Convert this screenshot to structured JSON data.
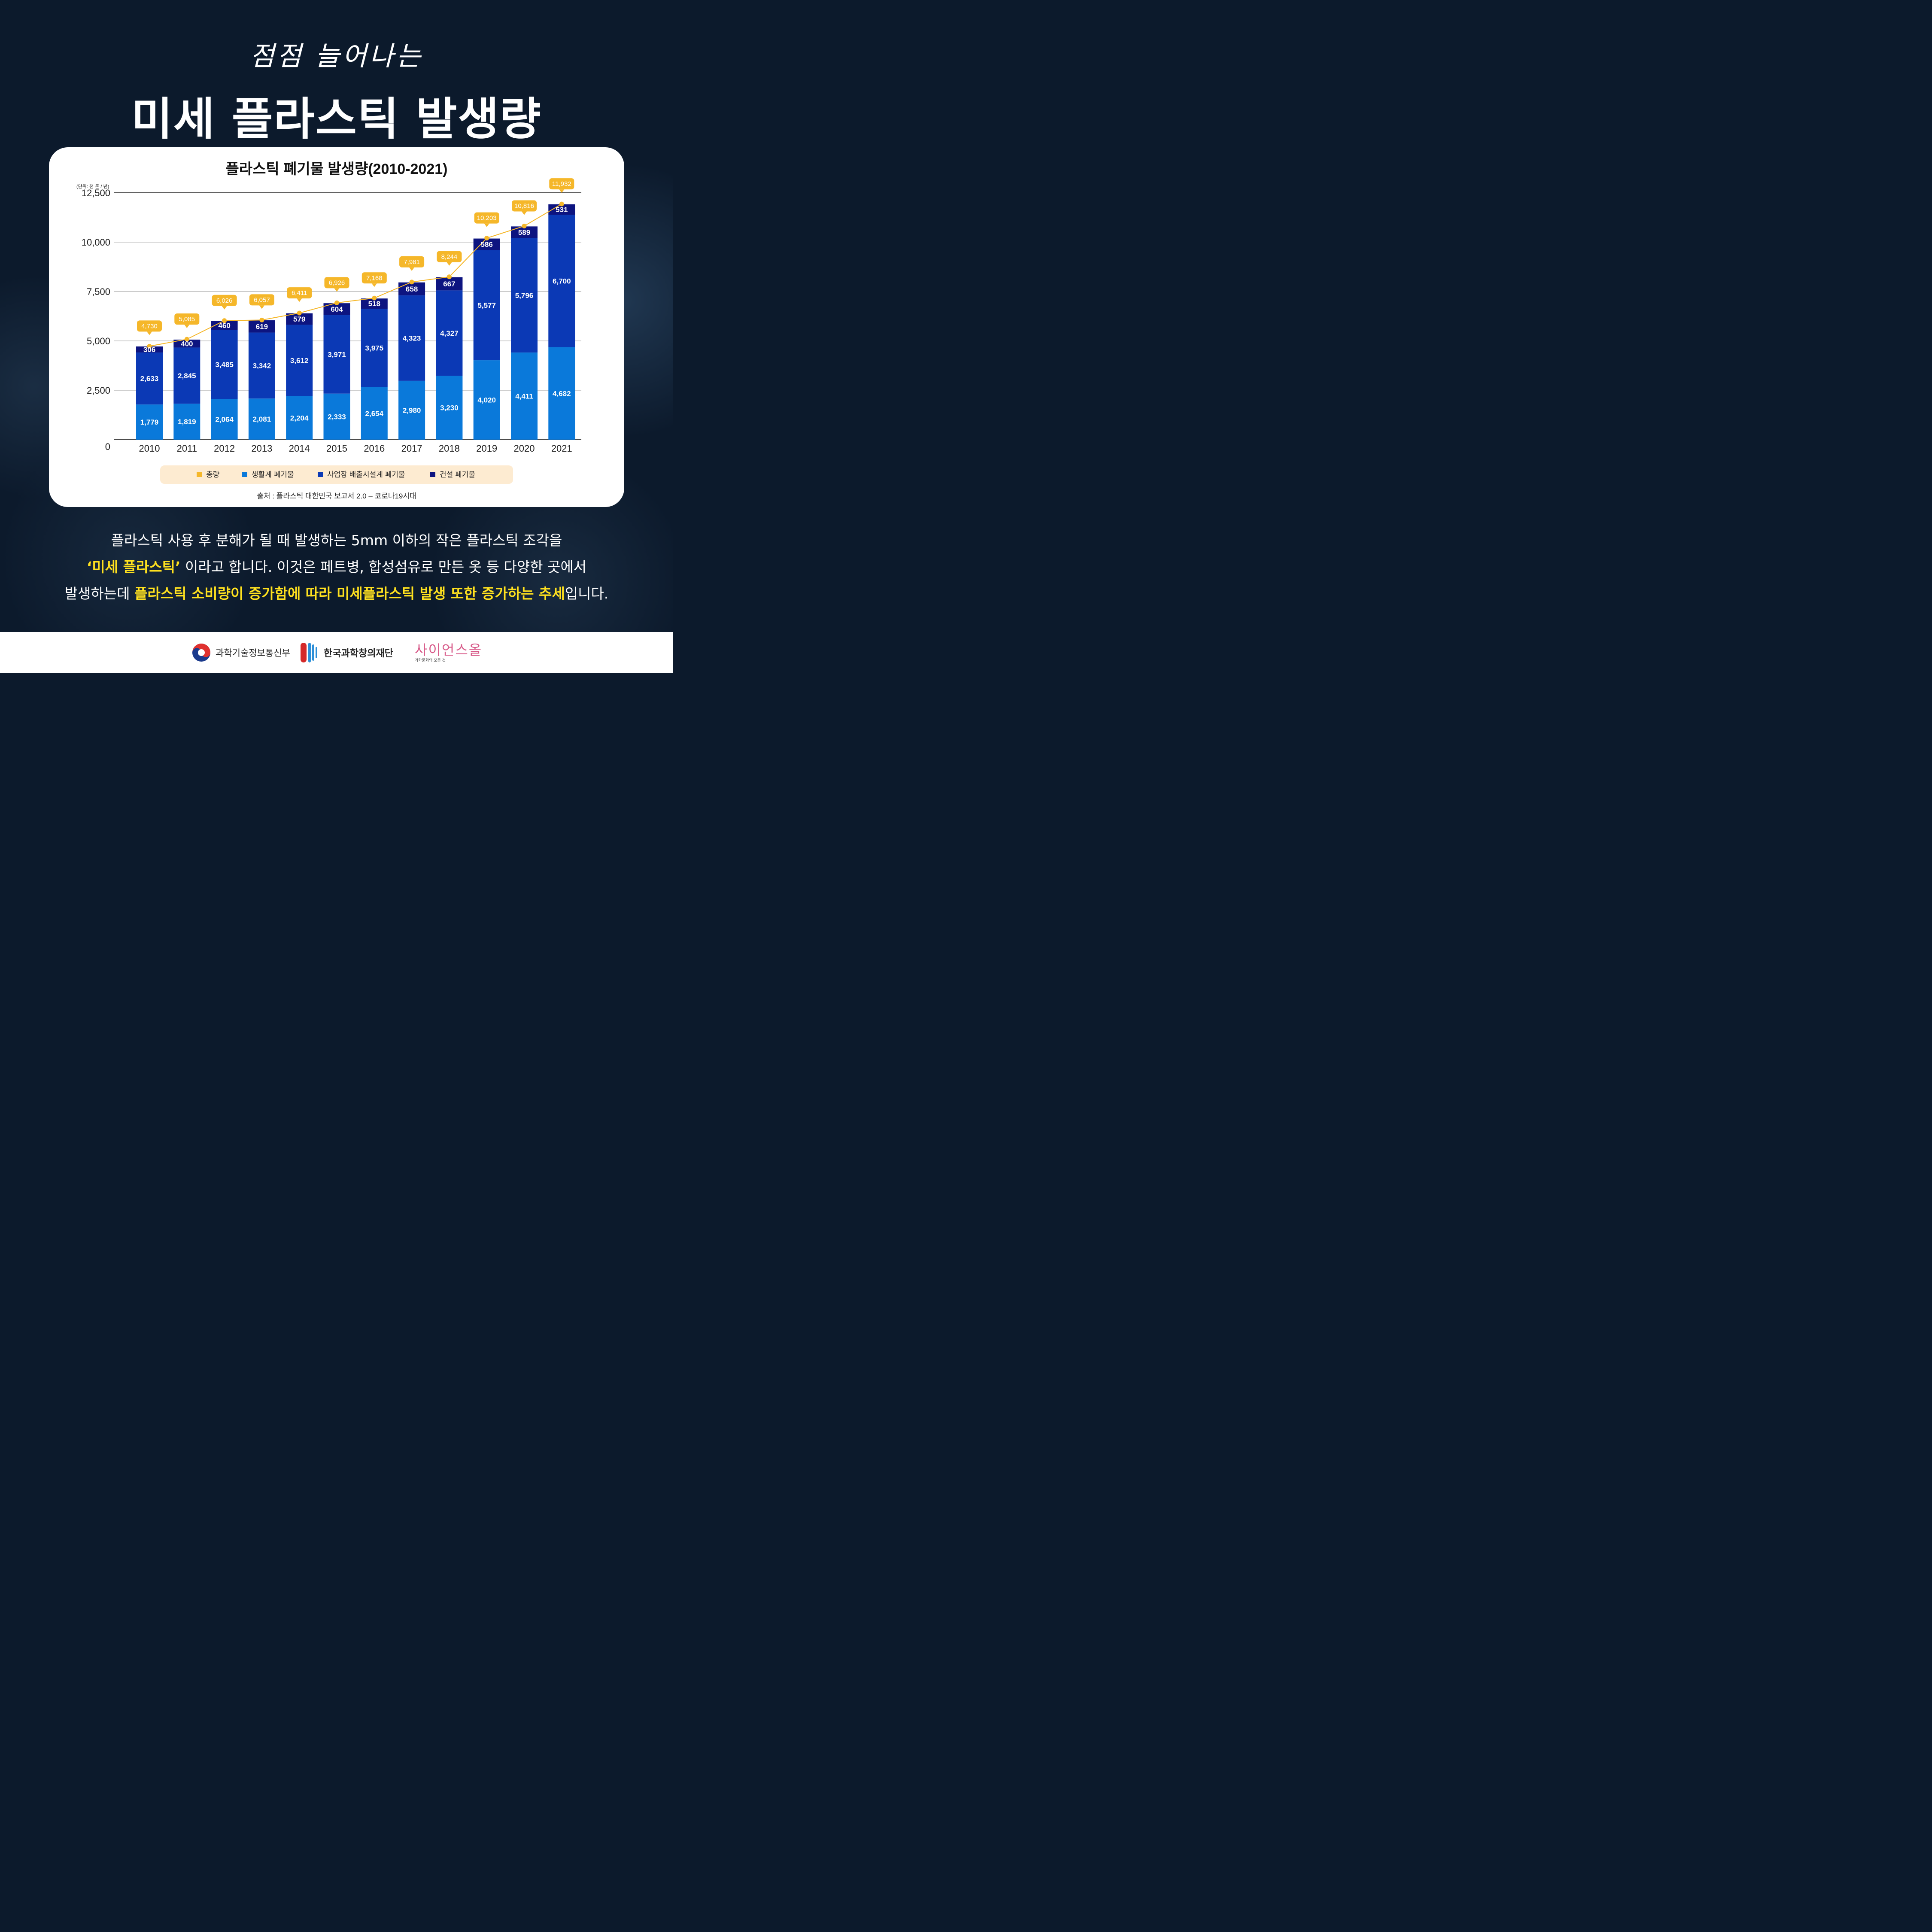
{
  "header": {
    "subtitle": "점점 늘어나는",
    "title": "미세 플라스틱 발생량"
  },
  "colors": {
    "background": "#0c1a2c",
    "total": "#f5b72a",
    "household": "#0a79da",
    "industrial": "#0b39b5",
    "construction": "#0d1480",
    "legend_bg": "#fdebd1",
    "highlight": "#ffe11f"
  },
  "chart_data": {
    "type": "bar",
    "stacked": true,
    "title": "플라스틱 폐기물 발생량(2010-2021)",
    "unit_label": "(단위: 천 톤 / 년)",
    "xlabel": "",
    "ylabel": "",
    "ylim": [
      0,
      12500
    ],
    "yticks": [
      "0",
      "2,500",
      "5,000",
      "7,500",
      "10,000",
      "12,500"
    ],
    "ytick_values": [
      0,
      2500,
      5000,
      7500,
      10000,
      12500
    ],
    "grid": true,
    "legend_position": "bottom",
    "categories": [
      "2010",
      "2011",
      "2012",
      "2013",
      "2014",
      "2015",
      "2016",
      "2017",
      "2018",
      "2019",
      "2020",
      "2021"
    ],
    "series": [
      {
        "name": "생활계 폐기물",
        "values": [
          1779,
          1819,
          2064,
          2081,
          2204,
          2333,
          2654,
          2980,
          3230,
          4020,
          4411,
          4682
        ],
        "labels": [
          "1,779",
          "1,819",
          "2,064",
          "2,081",
          "2,204",
          "2,333",
          "2,654",
          "2,980",
          "3,230",
          "4,020",
          "4,411",
          "4,682"
        ]
      },
      {
        "name": "사업장 배출시설계 폐기물",
        "values": [
          2633,
          2845,
          3485,
          3342,
          3612,
          3971,
          3975,
          4323,
          4327,
          5577,
          5796,
          6700
        ],
        "labels": [
          "2,633",
          "2,845",
          "3,485",
          "3,342",
          "3,612",
          "3,971",
          "3,975",
          "4,323",
          "4,327",
          "5,577",
          "5,796",
          "6,700"
        ]
      },
      {
        "name": "건설 폐기물",
        "values": [
          306,
          400,
          460,
          619,
          579,
          604,
          518,
          658,
          667,
          586,
          589,
          531
        ],
        "labels": [
          "306",
          "400",
          "460",
          "619",
          "579",
          "604",
          "518",
          "658",
          "667",
          "586",
          "589",
          "531"
        ]
      }
    ],
    "total": {
      "name": "총량",
      "type": "line",
      "values": [
        4730,
        5085,
        6026,
        6057,
        6411,
        6926,
        7168,
        7981,
        8244,
        10203,
        10816,
        11932
      ],
      "labels": [
        "4,730",
        "5,085",
        "6,026",
        "6,057",
        "6,411",
        "6,926",
        "7,168",
        "7,981",
        "8,244",
        "10,203",
        "10,816",
        "11,932"
      ]
    },
    "source": "출처 : 플라스틱 대한민국 보고서 2.0 – 코로나19시대"
  },
  "description": {
    "line1": "플라스틱 사용 후 분해가 될 때 발생하는 5mm 이하의 작은 플라스틱 조각을",
    "line2_highlight": "‘미세 플라스틱’",
    "line2_rest": " 이라고 합니다. 이것은 페트병, 합성섬유로 만든 옷 등 다양한 곳에서",
    "line3_start": "발생하는데 ",
    "line3_highlight": "플라스틱 소비량이 증가함에 따라 미세플라스틱 발생 또한 증가하는 추세",
    "line3_end": "입니다."
  },
  "footer": {
    "logo1": "과학기술정보통신부",
    "logo2": "한국과학창의재단",
    "logo3_main": "사이언스올",
    "logo3_sub": "과학문화의 모든 것"
  }
}
